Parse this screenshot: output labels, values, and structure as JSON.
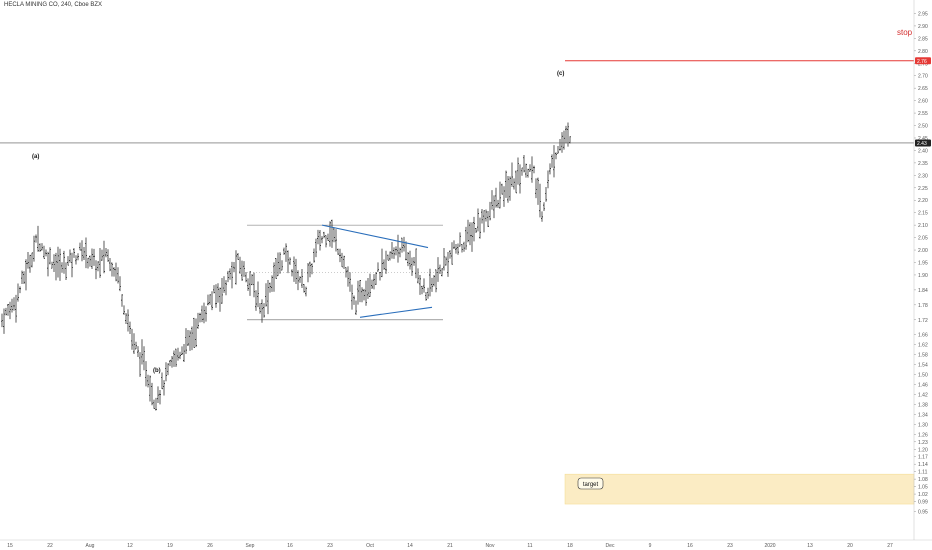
{
  "header": {
    "title": "HECLA MINING CO, 240, Cboe BZX"
  },
  "chart_data": {
    "type": "bar",
    "style": "ohlc",
    "title": "HECLA MINING CO, 240, Cboe BZX",
    "ylim": [
      0.94,
      2.98
    ],
    "y_ticks": [
      "2.95",
      "2.90",
      "2.85",
      "2.80",
      "2.75",
      "2.70",
      "2.65",
      "2.60",
      "2.55",
      "2.50",
      "2.45",
      "2.40",
      "2.35",
      "2.30",
      "2.25",
      "2.20",
      "2.15",
      "2.10",
      "2.05",
      "2.00",
      "1.95",
      "1.90",
      "1.84",
      "1.78",
      "1.72",
      "1.66",
      "1.62",
      "1.58",
      "1.54",
      "1.50",
      "1.46",
      "1.42",
      "1.38",
      "1.34",
      "1.30",
      "1.26",
      "1.23",
      "1.20",
      "1.17",
      "1.14",
      "1.11",
      "1.08",
      "1.05",
      "1.02",
      "0.99",
      "0.95"
    ],
    "x_ticks": [
      "15",
      "22",
      "Aug",
      "12",
      "19",
      "26",
      "Sep",
      "16",
      "23",
      "Oct",
      "14",
      "21",
      "Nov",
      "11",
      "18",
      "Dec",
      "9",
      "16",
      "23",
      "2020",
      "13",
      "20",
      "27"
    ],
    "last_price": "2.43",
    "stop_price": "2.76",
    "annotations": {
      "waves": [
        "(a)",
        "(b)",
        "(c)"
      ],
      "stop": "stop",
      "target": "target"
    },
    "price_path": [
      {
        "bar": 0,
        "close": 1.72
      },
      {
        "bar": 7,
        "close": 1.8
      },
      {
        "bar": 14,
        "close": 1.96
      },
      {
        "bar": 18,
        "close": 2.05
      },
      {
        "bar": 22,
        "close": 1.98
      },
      {
        "bar": 30,
        "close": 1.93
      },
      {
        "bar": 40,
        "close": 2.0
      },
      {
        "bar": 48,
        "close": 1.93
      },
      {
        "bar": 52,
        "close": 1.99
      },
      {
        "bar": 58,
        "close": 1.9
      },
      {
        "bar": 61,
        "close": 1.78
      },
      {
        "bar": 66,
        "close": 1.62
      },
      {
        "bar": 72,
        "close": 1.52
      },
      {
        "bar": 76,
        "close": 1.4
      },
      {
        "bar": 80,
        "close": 1.45
      },
      {
        "bar": 86,
        "close": 1.56
      },
      {
        "bar": 94,
        "close": 1.64
      },
      {
        "bar": 104,
        "close": 1.8
      },
      {
        "bar": 110,
        "close": 1.84
      },
      {
        "bar": 118,
        "close": 1.95
      },
      {
        "bar": 124,
        "close": 1.88
      },
      {
        "bar": 130,
        "close": 1.76
      },
      {
        "bar": 136,
        "close": 1.9
      },
      {
        "bar": 141,
        "close": 1.98
      },
      {
        "bar": 146,
        "close": 1.92
      },
      {
        "bar": 152,
        "close": 1.85
      },
      {
        "bar": 158,
        "close": 2.03
      },
      {
        "bar": 164,
        "close": 2.08
      },
      {
        "bar": 170,
        "close": 1.98
      },
      {
        "bar": 176,
        "close": 1.78
      },
      {
        "bar": 182,
        "close": 1.86
      },
      {
        "bar": 190,
        "close": 1.92
      },
      {
        "bar": 198,
        "close": 2.02
      },
      {
        "bar": 206,
        "close": 1.94
      },
      {
        "bar": 212,
        "close": 1.82
      },
      {
        "bar": 218,
        "close": 1.9
      },
      {
        "bar": 224,
        "close": 1.98
      },
      {
        "bar": 232,
        "close": 2.04
      },
      {
        "bar": 240,
        "close": 2.12
      },
      {
        "bar": 248,
        "close": 2.2
      },
      {
        "bar": 256,
        "close": 2.28
      },
      {
        "bar": 262,
        "close": 2.34
      },
      {
        "bar": 266,
        "close": 2.3
      },
      {
        "bar": 270,
        "close": 2.15
      },
      {
        "bar": 274,
        "close": 2.32
      },
      {
        "bar": 278,
        "close": 2.42
      },
      {
        "bar": 282,
        "close": 2.45
      },
      {
        "bar": 284,
        "close": 2.43
      }
    ],
    "drawings": {
      "range_top": 2.1,
      "range_bottom": 1.72,
      "range_mid": 1.91,
      "triangle_upper": [
        [
          2.1
        ],
        [
          2.01
        ]
      ],
      "triangle_lower": [
        [
          1.73
        ],
        [
          1.77
        ]
      ],
      "target_zone": [
        0.98,
        1.1
      ]
    },
    "colors": {
      "bars": "#111111",
      "trendline": "#2a6ebb",
      "stop_line": "#e53935",
      "target_fill": "#fbecc4",
      "grid": "#e8e8e8"
    }
  }
}
